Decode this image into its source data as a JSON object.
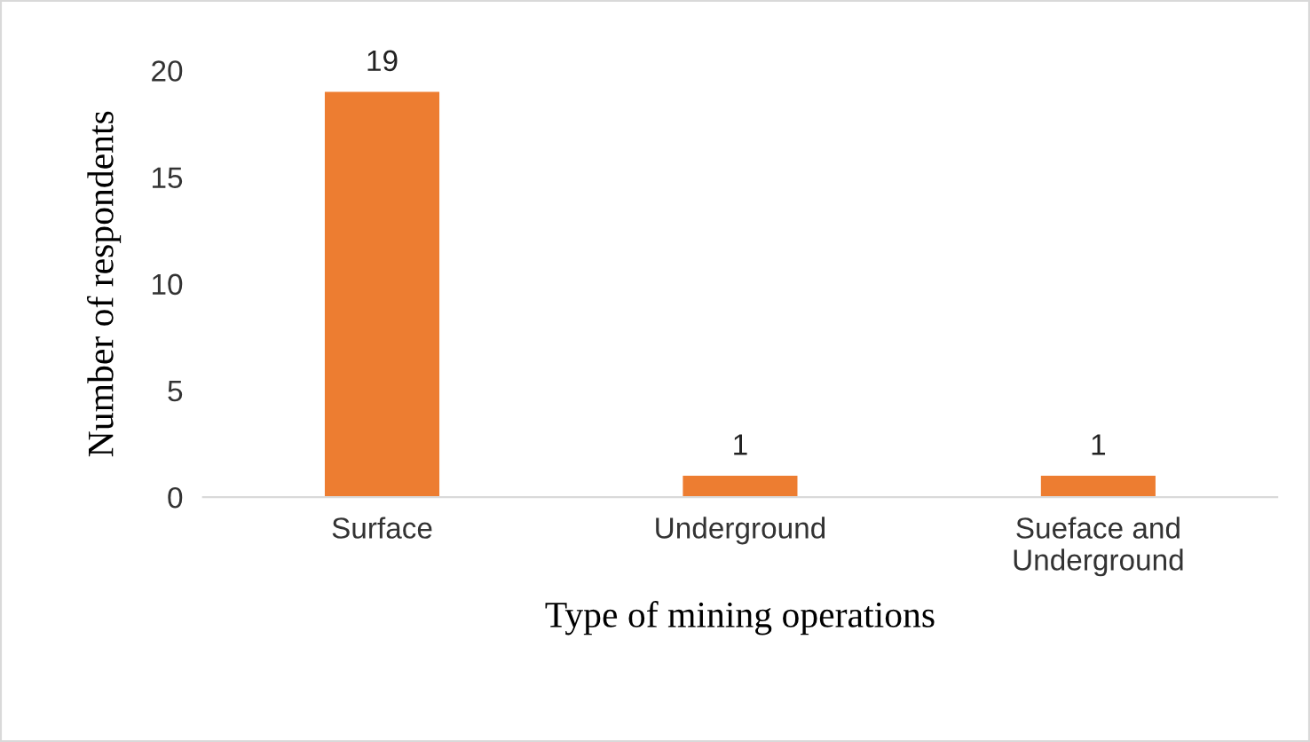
{
  "chart_data": {
    "type": "bar",
    "xlabel": "Type of mining operations",
    "ylabel": "Number of respondents",
    "categories": [
      "Surface",
      "Underground",
      "Sueface and\nUnderground"
    ],
    "values": [
      19,
      1,
      1
    ],
    "color": "#ed7d31",
    "ylim": [
      0,
      20
    ],
    "yticks": [
      0,
      5,
      10,
      15,
      20
    ],
    "grid": false,
    "data_labels": true
  }
}
